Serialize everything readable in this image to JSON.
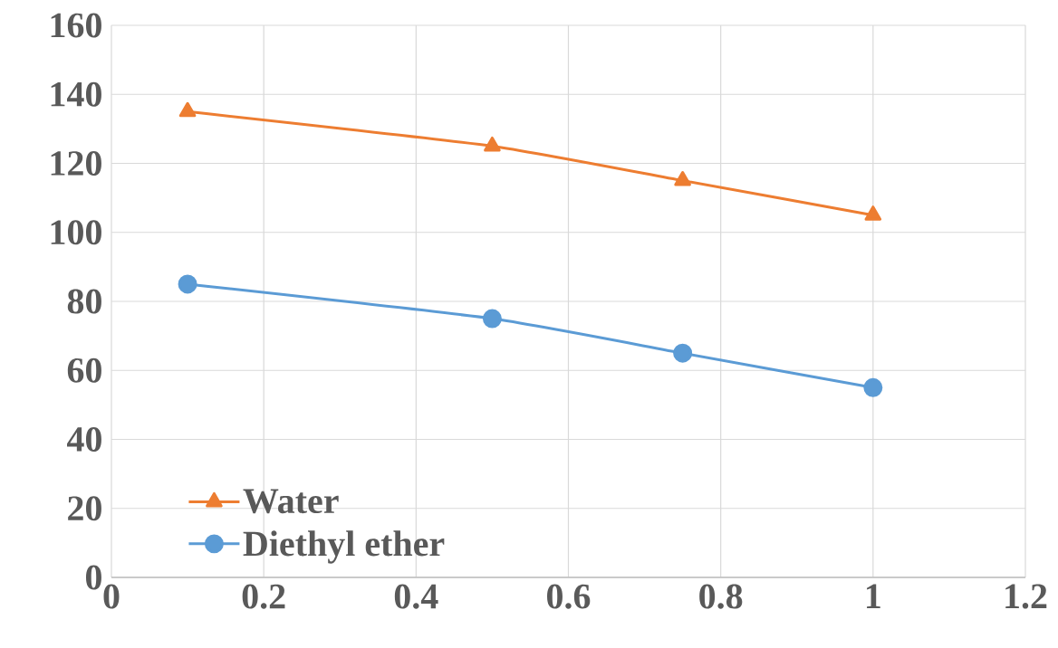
{
  "chart_data": {
    "type": "line",
    "x": [
      0.1,
      0.5,
      0.75,
      1
    ],
    "series": [
      {
        "name": "Water",
        "color": "#ed7d31",
        "marker": "triangle",
        "values": [
          135,
          125,
          115,
          105
        ]
      },
      {
        "name": "Diethyl ether",
        "color": "#5b9bd5",
        "marker": "circle",
        "values": [
          85,
          75,
          65,
          55
        ]
      }
    ],
    "xlim": [
      0,
      1.2
    ],
    "xticks": [
      0,
      0.2,
      0.4,
      0.6,
      0.8,
      1,
      1.2
    ],
    "ylim": [
      0,
      160
    ],
    "yticks": [
      0,
      20,
      40,
      60,
      80,
      100,
      120,
      140,
      160
    ],
    "grid": true,
    "legend": "bottom left",
    "line_style": "solid"
  }
}
